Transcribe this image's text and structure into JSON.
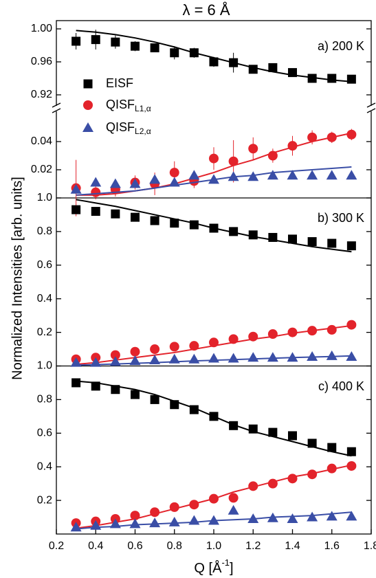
{
  "title": "λ = 6 Å",
  "y_label": "Normalized Intensities [arb. units]",
  "x_label": "Q [Å",
  "x_label_sup": "-1",
  "x_label_end": "]",
  "xlim": [
    0.2,
    1.8
  ],
  "xticks": [
    0.2,
    0.4,
    0.6,
    0.8,
    {
      "value": 1.0,
      "label": "1.0"
    },
    1.2,
    1.4,
    1.6,
    1.8
  ],
  "chart_data": [
    {
      "type": "scatter",
      "annotation": "a) 200 K",
      "ylim": [
        0.91,
        1.01
      ],
      "yticks": [
        0.92,
        0.96,
        {
          "value": 1.0,
          "label": "1.00"
        }
      ],
      "x": [
        0.3,
        0.4,
        0.5,
        0.6,
        0.7,
        0.8,
        0.9,
        1.0,
        1.1,
        1.2,
        1.3,
        1.4,
        1.5,
        1.6,
        1.7
      ],
      "series": [
        {
          "name": "EISF",
          "color": "#000000",
          "marker": "square",
          "values": [
            0.985,
            0.987,
            0.984,
            0.979,
            0.977,
            0.971,
            0.971,
            0.96,
            0.959,
            0.951,
            0.953,
            0.947,
            0.94,
            0.94,
            0.939
          ],
          "errors": [
            0.01,
            0.012,
            0.008,
            0.006,
            0.005,
            0.008,
            0.006,
            0.006,
            0.012,
            0.005,
            0.004,
            0.004,
            0.003,
            0.003,
            0.003
          ],
          "fit": [
            0.998,
            0.996,
            0.993,
            0.989,
            0.984,
            0.978,
            0.971,
            0.965,
            0.959,
            0.953,
            0.948,
            0.944,
            0.941,
            0.938,
            0.936
          ]
        }
      ]
    },
    {
      "type": "scatter",
      "ylim": [
        0,
        0.06
      ],
      "yticks": [
        0.02,
        0.04
      ],
      "x": [
        0.3,
        0.4,
        0.5,
        0.6,
        0.7,
        0.8,
        0.9,
        1.0,
        1.1,
        1.2,
        1.3,
        1.4,
        1.5,
        1.6,
        1.7
      ],
      "series": [
        {
          "name": "QISF",
          "name_sub": "L1,α",
          "color": "#e3232b",
          "marker": "circle",
          "values": [
            0.007,
            0.004,
            0.006,
            0.011,
            0.01,
            0.018,
            0.012,
            0.028,
            0.026,
            0.035,
            0.03,
            0.037,
            0.043,
            0.043,
            0.045
          ],
          "errors": [
            0.02,
            0.005,
            0.005,
            0.005,
            0.008,
            0.008,
            0.005,
            0.008,
            0.015,
            0.008,
            0.005,
            0.007,
            0.005,
            0.004,
            0.004
          ],
          "fit": [
            0.002,
            0.002,
            0.003,
            0.005,
            0.007,
            0.01,
            0.014,
            0.018,
            0.023,
            0.027,
            0.032,
            0.036,
            0.04,
            0.043,
            0.046
          ]
        },
        {
          "name": "QISF",
          "name_sub": "L2,α",
          "color": "#3a4ea6",
          "marker": "triangle",
          "values": [
            0.006,
            0.011,
            0.01,
            0.01,
            0.013,
            0.011,
            0.016,
            0.013,
            0.015,
            0.015,
            0.016,
            0.016,
            0.016,
            0.016,
            0.016
          ],
          "fit": [
            0.002,
            0.003,
            0.004,
            0.005,
            0.007,
            0.009,
            0.011,
            0.013,
            0.015,
            0.016,
            0.018,
            0.019,
            0.02,
            0.021,
            0.022
          ]
        }
      ]
    },
    {
      "type": "scatter",
      "annotation": "b) 300 K",
      "ylim": [
        0,
        1.0
      ],
      "yticks": [
        0.2,
        0.4,
        0.6,
        0.8,
        {
          "value": 1.0,
          "label": "1.0"
        }
      ],
      "x": [
        0.3,
        0.4,
        0.5,
        0.6,
        0.7,
        0.8,
        0.9,
        1.0,
        1.1,
        1.2,
        1.3,
        1.4,
        1.5,
        1.6,
        1.7
      ],
      "series": [
        {
          "color": "#000000",
          "marker": "square",
          "values": [
            0.93,
            0.92,
            0.905,
            0.885,
            0.865,
            0.85,
            0.84,
            0.82,
            0.8,
            0.78,
            0.765,
            0.755,
            0.74,
            0.73,
            0.715
          ],
          "fit": [
            0.99,
            0.97,
            0.95,
            0.925,
            0.9,
            0.875,
            0.85,
            0.82,
            0.795,
            0.77,
            0.75,
            0.73,
            0.71,
            0.695,
            0.68
          ]
        },
        {
          "color": "#e3232b",
          "marker": "circle",
          "values": [
            0.04,
            0.05,
            0.065,
            0.085,
            0.1,
            0.115,
            0.12,
            0.14,
            0.16,
            0.175,
            0.19,
            0.2,
            0.21,
            0.215,
            0.245
          ],
          "fit": [
            0.01,
            0.02,
            0.035,
            0.05,
            0.065,
            0.08,
            0.1,
            0.12,
            0.14,
            0.16,
            0.175,
            0.195,
            0.21,
            0.225,
            0.24
          ]
        },
        {
          "color": "#3a4ea6",
          "marker": "triangle",
          "values": [
            0.02,
            0.02,
            0.025,
            0.03,
            0.035,
            0.04,
            0.04,
            0.045,
            0.045,
            0.05,
            0.05,
            0.05,
            0.055,
            0.06,
            0.055
          ],
          "fit": [
            0.005,
            0.008,
            0.012,
            0.016,
            0.02,
            0.025,
            0.03,
            0.034,
            0.038,
            0.042,
            0.046,
            0.05,
            0.053,
            0.056,
            0.06
          ]
        }
      ]
    },
    {
      "type": "scatter",
      "annotation": "c) 400 K",
      "ylim": [
        0,
        1.0
      ],
      "yticks": [
        0.2,
        0.4,
        0.6,
        0.8,
        {
          "value": 1.0,
          "label": "1.0"
        }
      ],
      "x": [
        0.3,
        0.4,
        0.5,
        0.6,
        0.7,
        0.8,
        0.9,
        1.0,
        1.1,
        1.2,
        1.3,
        1.4,
        1.5,
        1.6,
        1.7
      ],
      "series": [
        {
          "color": "#000000",
          "marker": "square",
          "values": [
            0.9,
            0.88,
            0.86,
            0.83,
            0.8,
            0.77,
            0.74,
            0.7,
            0.645,
            0.625,
            0.605,
            0.585,
            0.54,
            0.515,
            0.49
          ],
          "fit": [
            0.91,
            0.9,
            0.88,
            0.86,
            0.83,
            0.79,
            0.75,
            0.7,
            0.65,
            0.61,
            0.58,
            0.55,
            0.52,
            0.49,
            0.465
          ]
        },
        {
          "color": "#e3232b",
          "marker": "circle",
          "values": [
            0.065,
            0.075,
            0.09,
            0.11,
            0.13,
            0.16,
            0.175,
            0.21,
            0.215,
            0.285,
            0.3,
            0.33,
            0.355,
            0.39,
            0.405
          ],
          "fit": [
            0.035,
            0.05,
            0.07,
            0.09,
            0.12,
            0.15,
            0.18,
            0.21,
            0.25,
            0.28,
            0.31,
            0.34,
            0.36,
            0.385,
            0.41
          ]
        },
        {
          "color": "#3a4ea6",
          "marker": "triangle",
          "values": [
            0.04,
            0.05,
            0.06,
            0.06,
            0.065,
            0.07,
            0.08,
            0.08,
            0.14,
            0.09,
            0.095,
            0.09,
            0.1,
            0.105,
            0.105
          ],
          "fit": [
            0.03,
            0.04,
            0.045,
            0.055,
            0.06,
            0.065,
            0.07,
            0.08,
            0.085,
            0.09,
            0.1,
            0.105,
            0.11,
            0.12,
            0.13
          ]
        }
      ]
    }
  ]
}
